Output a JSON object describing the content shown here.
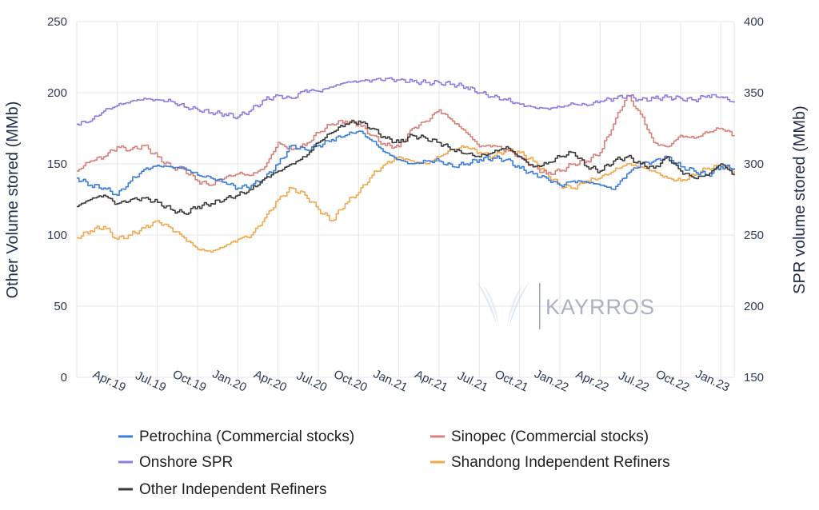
{
  "colors": {
    "petrochina": "#3b7ddd",
    "sinopec": "#d9807b",
    "onshore_spr": "#8a7fe0",
    "shandong": "#f2a94e",
    "other_independent": "#3a3a3a",
    "grid": "#e4e4e4",
    "axis_text": "#2e3a55"
  },
  "watermark": {
    "text": "KAYRROS",
    "icon": "wings-logo-icon"
  },
  "chart_data": {
    "type": "line",
    "x": [
      "Jan.19",
      "Feb.19",
      "Mar.19",
      "Apr.19",
      "May.19",
      "Jun.19",
      "Jul.19",
      "Aug.19",
      "Sep.19",
      "Oct.19",
      "Nov.19",
      "Dec.19",
      "Jan.20",
      "Feb.20",
      "Mar.20",
      "Apr.20",
      "May.20",
      "Jun.20",
      "Jul.20",
      "Aug.20",
      "Sep.20",
      "Oct.20",
      "Nov.20",
      "Dec.20",
      "Jan.21",
      "Feb.21",
      "Mar.21",
      "Apr.21",
      "May.21",
      "Jun.21",
      "Jul.21",
      "Aug.21",
      "Sep.21",
      "Oct.21",
      "Nov.21",
      "Dec.21",
      "Jan.22",
      "Feb.22",
      "Mar.22",
      "Apr.22",
      "May.22",
      "Jun.22",
      "Jul.22",
      "Aug.22",
      "Sep.22",
      "Oct.22",
      "Nov.22",
      "Dec.22",
      "Jan.23",
      "Feb.23"
    ],
    "x_ticks": [
      "Apr.19",
      "Jul.19",
      "Oct.19",
      "Jan.20",
      "Apr.20",
      "Jul.20",
      "Oct.20",
      "Jan.21",
      "Apr.21",
      "Jul.21",
      "Oct.21",
      "Jan.22",
      "Apr.22",
      "Jul.22",
      "Oct.22",
      "Jan.23"
    ],
    "y_left": {
      "label": "Other Volume stored (MMb)",
      "range": [
        0,
        250
      ],
      "ticks": [
        "0",
        "50",
        "100",
        "150",
        "200",
        "250"
      ]
    },
    "y_right": {
      "label": "SPR volume stored (MMb)",
      "range": [
        150,
        400
      ],
      "ticks": [
        "150",
        "200",
        "250",
        "300",
        "350",
        "400"
      ]
    },
    "grid": true,
    "legend_position": "bottom",
    "series": [
      {
        "name": "Petrochina (Commercial stocks)",
        "axis": "left",
        "color": "#3b7ddd",
        "values": [
          140,
          135,
          133,
          128,
          138,
          146,
          149,
          148,
          147,
          142,
          140,
          137,
          133,
          135,
          140,
          150,
          163,
          160,
          163,
          167,
          170,
          173,
          166,
          158,
          153,
          150,
          152,
          152,
          148,
          150,
          153,
          154,
          153,
          147,
          143,
          140,
          135,
          138,
          137,
          135,
          132,
          143,
          150,
          152,
          155,
          148,
          145,
          142,
          148,
          147
        ]
      },
      {
        "name": "Sinopec (Commercial stocks)",
        "axis": "left",
        "color": "#d9807b",
        "values": [
          145,
          152,
          155,
          162,
          160,
          163,
          155,
          148,
          146,
          138,
          135,
          140,
          143,
          142,
          148,
          165,
          160,
          163,
          172,
          178,
          180,
          178,
          170,
          163,
          162,
          175,
          180,
          188,
          180,
          172,
          162,
          163,
          160,
          155,
          148,
          143,
          145,
          150,
          152,
          158,
          178,
          198,
          185,
          165,
          162,
          170,
          168,
          172,
          175,
          170
        ]
      },
      {
        "name": "Onshore SPR",
        "axis": "right",
        "color": "#8a7fe0",
        "values": [
          328,
          330,
          337,
          341,
          344,
          346,
          345,
          344,
          340,
          338,
          336,
          335,
          333,
          338,
          345,
          348,
          346,
          352,
          351,
          354,
          357,
          358,
          359,
          360,
          359,
          358,
          357,
          357,
          356,
          354,
          350,
          347,
          345,
          342,
          340,
          339,
          340,
          342,
          341,
          344,
          346,
          348,
          345,
          346,
          347,
          346,
          345,
          348,
          347,
          343
        ]
      },
      {
        "name": "Shandong Independent Refiners",
        "axis": "left",
        "color": "#f2a94e",
        "values": [
          98,
          103,
          106,
          97,
          100,
          105,
          110,
          105,
          98,
          90,
          88,
          92,
          97,
          100,
          112,
          125,
          133,
          128,
          118,
          110,
          122,
          130,
          142,
          150,
          155,
          152,
          150,
          155,
          160,
          162,
          158,
          155,
          160,
          158,
          152,
          143,
          135,
          133,
          138,
          140,
          145,
          150,
          148,
          145,
          140,
          138,
          142,
          147,
          148,
          145
        ]
      },
      {
        "name": "Other Independent Refiners",
        "axis": "left",
        "color": "#3a3a3a",
        "values": [
          120,
          125,
          128,
          122,
          125,
          126,
          123,
          118,
          115,
          120,
          122,
          125,
          128,
          132,
          140,
          145,
          150,
          155,
          165,
          172,
          178,
          180,
          175,
          168,
          165,
          170,
          168,
          165,
          160,
          157,
          155,
          158,
          162,
          155,
          148,
          150,
          155,
          158,
          148,
          145,
          152,
          155,
          150,
          147,
          155,
          145,
          140,
          142,
          150,
          142
        ]
      }
    ]
  }
}
